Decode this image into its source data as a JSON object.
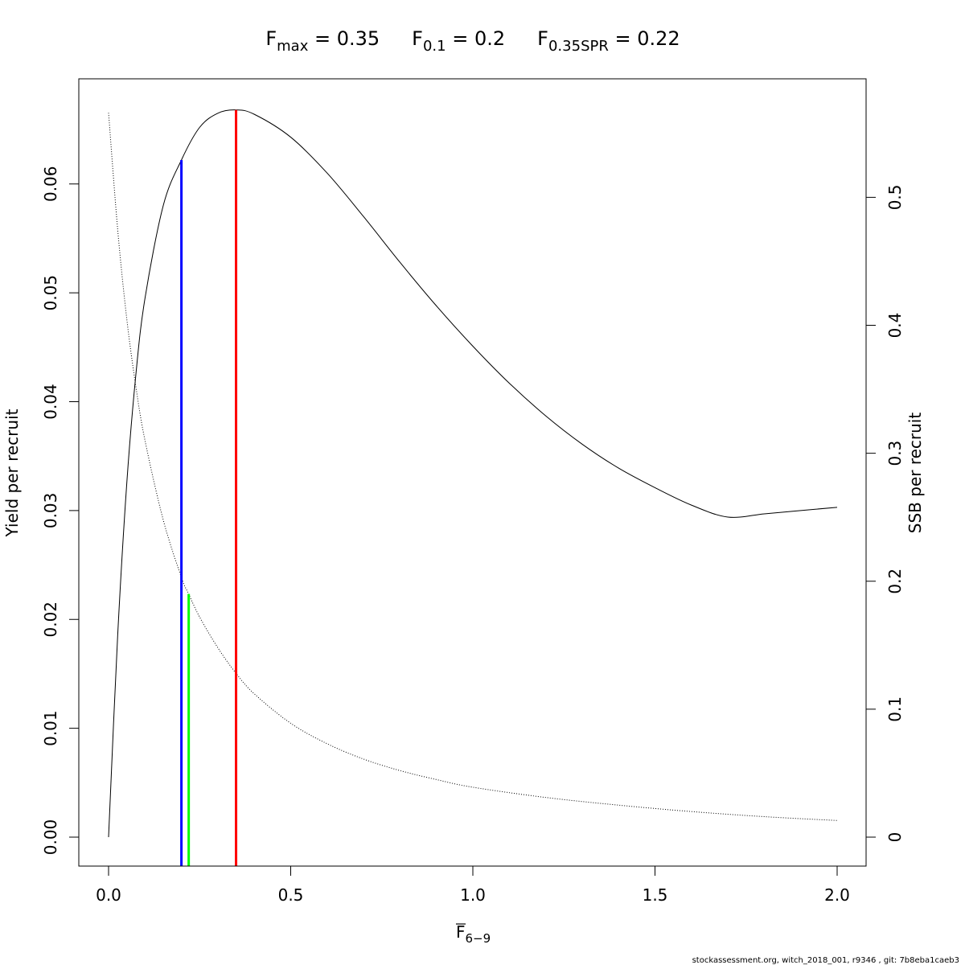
{
  "chart_data": {
    "type": "line",
    "title_parts": [
      {
        "base": "F",
        "sub": "max",
        "rest": " = 0.35"
      },
      {
        "base": "F",
        "sub": "0.1",
        "rest": " = 0.2"
      },
      {
        "base": "F",
        "sub": "0.35SPR",
        "rest": " = 0.22"
      }
    ],
    "xlabel": {
      "base": "F",
      "sub": "6−9"
    },
    "ylabel_left": "Yield per recruit",
    "ylabel_right": "SSB per recruit",
    "xlim": [
      0,
      2
    ],
    "ylim_left": [
      0,
      0.067
    ],
    "ylim_right": [
      0,
      0.57
    ],
    "x_ticks": [
      "0.0",
      "0.5",
      "1.0",
      "1.5",
      "2.0"
    ],
    "y_left_ticks": [
      "0.00",
      "0.01",
      "0.02",
      "0.03",
      "0.04",
      "0.05",
      "0.06"
    ],
    "y_right_ticks": [
      "0",
      "0.1",
      "0.2",
      "0.3",
      "0.4",
      "0.5"
    ],
    "series": [
      {
        "name": "Yield per recruit",
        "axis": "left",
        "style": "solid",
        "x": [
          0,
          0.025,
          0.05,
          0.075,
          0.1,
          0.15,
          0.2,
          0.25,
          0.3,
          0.35,
          0.4,
          0.5,
          0.6,
          0.7,
          0.8,
          0.9,
          1.0,
          1.1,
          1.2,
          1.3,
          1.4,
          1.5,
          1.6,
          1.7,
          1.8,
          1.9,
          2.0
        ],
        "y": [
          0,
          0.0185,
          0.0325,
          0.0425,
          0.0495,
          0.058,
          0.0622,
          0.0652,
          0.0665,
          0.0668,
          0.0664,
          0.0643,
          0.061,
          0.057,
          0.0528,
          0.0488,
          0.0451,
          0.0417,
          0.0387,
          0.0361,
          0.0339,
          0.0321,
          0.0305,
          0.0294,
          0.0297,
          0.03,
          0.0303
        ]
      },
      {
        "name": "SSB per recruit",
        "axis": "right",
        "style": "dotted",
        "x": [
          0,
          0.025,
          0.05,
          0.075,
          0.1,
          0.15,
          0.2,
          0.22,
          0.25,
          0.3,
          0.35,
          0.4,
          0.5,
          0.6,
          0.7,
          0.8,
          0.9,
          1.0,
          1.2,
          1.4,
          1.6,
          1.8,
          2.0
        ],
        "y": [
          0.566,
          0.475,
          0.405,
          0.352,
          0.31,
          0.248,
          0.203,
          0.19,
          0.172,
          0.148,
          0.128,
          0.112,
          0.089,
          0.073,
          0.061,
          0.052,
          0.045,
          0.039,
          0.031,
          0.025,
          0.02,
          0.016,
          0.013
        ]
      }
    ],
    "vlines": [
      {
        "label": "F0.1",
        "x": 0.2,
        "top_left": 0.0622,
        "color": "#0000ff"
      },
      {
        "label": "F0.35SPR",
        "x": 0.22,
        "top_right": 0.19,
        "color": "#00ff00"
      },
      {
        "label": "Fmax",
        "x": 0.35,
        "top_left": 0.0668,
        "color": "#ff0000"
      }
    ],
    "grid": false,
    "legend": "none"
  },
  "footer": "stockassessment.org, witch_2018_001, r9346 , git: 7b8eba1caeb3"
}
